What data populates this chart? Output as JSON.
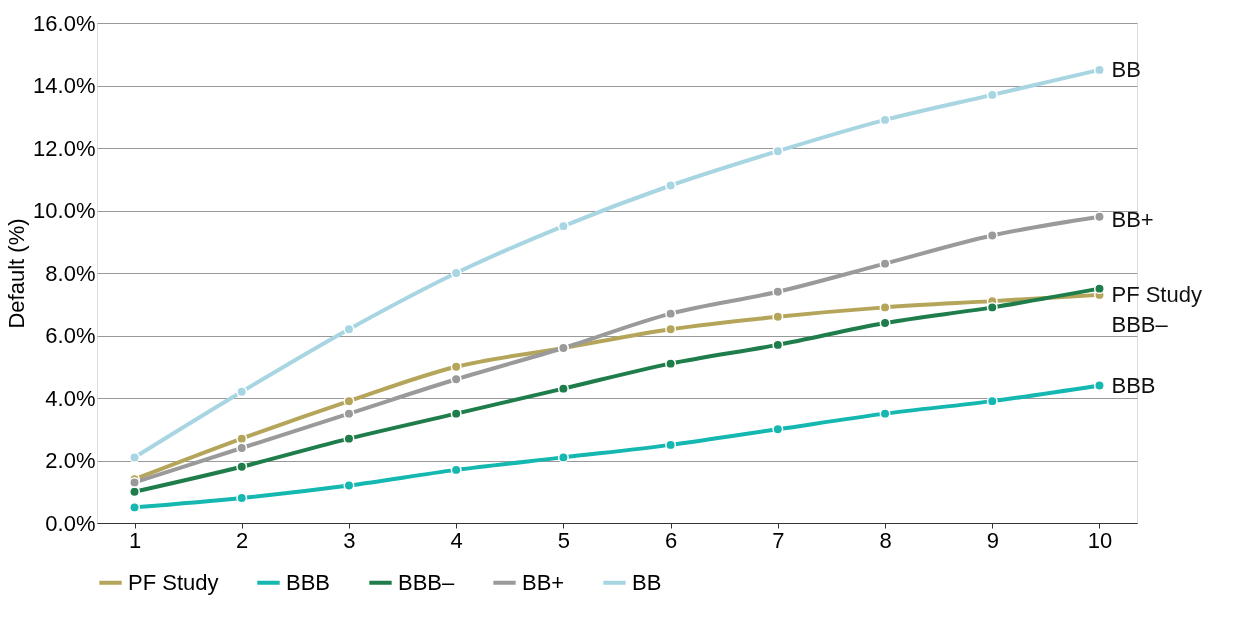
{
  "chart_data": {
    "type": "line",
    "ylabel": "Default (%)",
    "categories": [
      "1",
      "2",
      "3",
      "4",
      "5",
      "6",
      "7",
      "8",
      "9",
      "10"
    ],
    "series": [
      {
        "name": "PF Study",
        "color": "#b5a55a",
        "values": [
          1.4,
          2.7,
          3.9,
          5.0,
          5.6,
          6.2,
          6.6,
          6.9,
          7.1,
          7.3
        ]
      },
      {
        "name": "BBB",
        "color": "#14b8b0",
        "values": [
          0.5,
          0.8,
          1.2,
          1.7,
          2.1,
          2.5,
          3.0,
          3.5,
          3.9,
          4.4
        ]
      },
      {
        "name": "BBB–",
        "color": "#1e7d4a",
        "values": [
          1.0,
          1.8,
          2.7,
          3.5,
          4.3,
          5.1,
          5.7,
          6.4,
          6.9,
          7.5
        ]
      },
      {
        "name": "BB+",
        "color": "#9a9a9a",
        "values": [
          1.3,
          2.4,
          3.5,
          4.6,
          5.6,
          6.7,
          7.4,
          8.3,
          9.2,
          9.8
        ]
      },
      {
        "name": "BB",
        "color": "#a8d5e2",
        "values": [
          2.1,
          4.2,
          6.2,
          8.0,
          9.5,
          10.8,
          11.9,
          12.9,
          13.7,
          14.5
        ]
      }
    ],
    "ylim": [
      0,
      16
    ],
    "yticks": [
      {
        "value": 0,
        "label": "0.0%"
      },
      {
        "value": 2,
        "label": "2.0%"
      },
      {
        "value": 4,
        "label": "4.0%"
      },
      {
        "value": 6,
        "label": "6.0%"
      },
      {
        "value": 8,
        "label": "8.0%"
      },
      {
        "value": 10,
        "label": "10.0%"
      },
      {
        "value": 12,
        "label": "12.0%"
      },
      {
        "value": 14,
        "label": "14.0%"
      },
      {
        "value": 16,
        "label": "16.0%"
      }
    ],
    "annotations": [
      {
        "text": "BB",
        "x": "10",
        "y": 14.5
      },
      {
        "text": "BB+",
        "x": "10",
        "y": 9.7
      },
      {
        "text": "PF Study",
        "x": "10",
        "y": 7.3
      },
      {
        "text": "BBB–",
        "x": "10",
        "y": 7.5
      },
      {
        "text": "BBB",
        "x": "10",
        "y": 4.4
      }
    ],
    "grid": "y",
    "legend": "bottom",
    "marker": "circle",
    "line_style": "solid"
  }
}
